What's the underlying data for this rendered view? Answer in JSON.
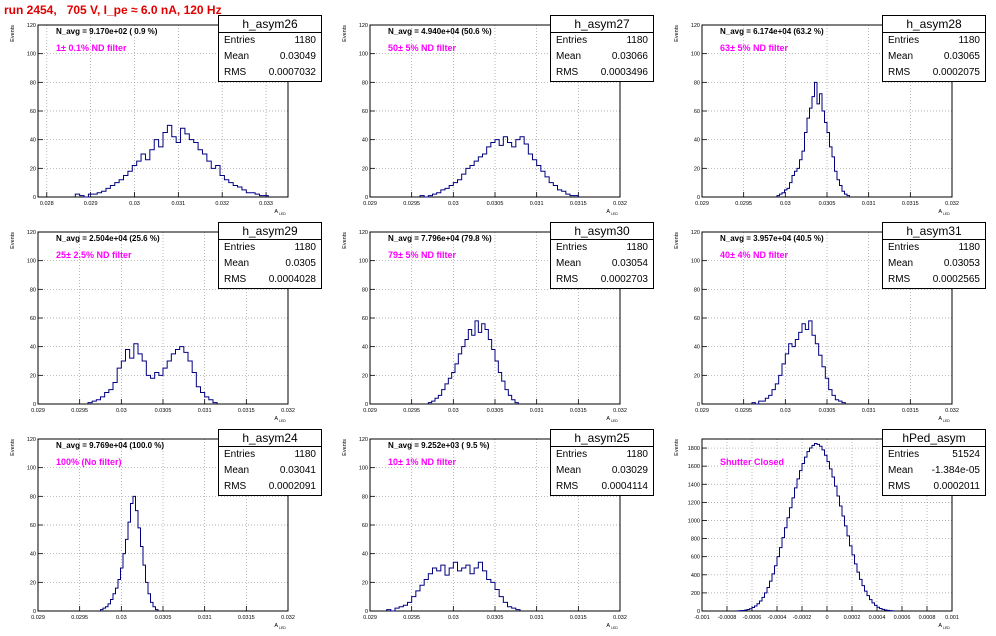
{
  "title": "run 2454,   705 V, I_pe ≈ 6.0 nA, 120 Hz",
  "common": {
    "ylabel": "Events",
    "xlabel": "A",
    "xlabel_sub": "LED",
    "stat_entries_label": "Entries",
    "stat_mean_label": "Mean",
    "stat_rms_label": "RMS",
    "line_color": "#000080"
  },
  "chart_data": [
    {
      "type": "bar",
      "name": "h_asym26",
      "navg": "N_avg = 9.170e+02 ( 0.9 %)",
      "filter": "1± 0.1% ND filter",
      "entries": "1180",
      "mean": "0.03049",
      "rms": "0.0007032",
      "xlim": [
        0.0278,
        0.0335
      ],
      "ylim": [
        0,
        120
      ],
      "xticks": [
        0.028,
        0.029,
        0.03,
        0.031,
        0.032,
        0.033
      ],
      "xticklabels": [
        "0.028",
        "0.029",
        "0.03",
        "0.031",
        "0.032",
        "0.033"
      ],
      "yticks": [
        0,
        20,
        40,
        60,
        80,
        100,
        120
      ],
      "bins": {
        "x0": 0.02865,
        "dx": 0.0001,
        "values": [
          2,
          1,
          0,
          2,
          2,
          3,
          4,
          6,
          8,
          10,
          12,
          15,
          18,
          22,
          25,
          30,
          26,
          33,
          40,
          35,
          45,
          50,
          42,
          38,
          48,
          44,
          40,
          38,
          33,
          30,
          25,
          20,
          22,
          15,
          12,
          10,
          8,
          7,
          5,
          3,
          3,
          2,
          1,
          1
        ]
      }
    },
    {
      "type": "bar",
      "name": "h_asym27",
      "navg": "N_avg = 4.940e+04 (50.6 %)",
      "filter": "50± 5% ND filter",
      "entries": "1180",
      "mean": "0.03066",
      "rms": "0.0003496",
      "xlim": [
        0.029,
        0.032
      ],
      "ylim": [
        0,
        120
      ],
      "xticks": [
        0.029,
        0.0295,
        0.03,
        0.0305,
        0.031,
        0.0315,
        0.032
      ],
      "xticklabels": [
        "0.029",
        "0.0295",
        "0.03",
        "0.0305",
        "0.031",
        "0.0315",
        "0.032"
      ],
      "yticks": [
        0,
        20,
        40,
        60,
        80,
        100,
        120
      ],
      "bins": {
        "x0": 0.0296,
        "dx": 5e-05,
        "values": [
          1,
          0,
          1,
          2,
          3,
          5,
          6,
          8,
          10,
          12,
          16,
          20,
          22,
          25,
          28,
          30,
          35,
          38,
          40,
          36,
          42,
          38,
          35,
          40,
          42,
          37,
          30,
          26,
          22,
          18,
          14,
          10,
          8,
          5,
          4,
          2,
          1,
          1
        ]
      }
    },
    {
      "type": "bar",
      "name": "h_asym28",
      "navg": "N_avg = 6.174e+04 (63.2 %)",
      "filter": "63± 5% ND filter",
      "entries": "1180",
      "mean": "0.03065",
      "rms": "0.0002075",
      "xlim": [
        0.029,
        0.032
      ],
      "ylim": [
        0,
        120
      ],
      "xticks": [
        0.029,
        0.0295,
        0.03,
        0.0305,
        0.031,
        0.0315,
        0.032
      ],
      "xticklabels": [
        "0.029",
        "0.0295",
        "0.03",
        "0.0305",
        "0.031",
        "0.0315",
        "0.032"
      ],
      "yticks": [
        0,
        20,
        40,
        60,
        80,
        100,
        120
      ],
      "bins": {
        "x0": 0.0299,
        "dx": 3e-05,
        "values": [
          1,
          2,
          3,
          5,
          6,
          10,
          15,
          18,
          20,
          26,
          32,
          45,
          55,
          62,
          70,
          80,
          65,
          72,
          60,
          52,
          45,
          35,
          28,
          18,
          12,
          8,
          4,
          2,
          1
        ]
      }
    },
    {
      "type": "bar",
      "name": "h_asym29",
      "navg": "N_avg = 2.504e+04 (25.6 %)",
      "filter": "25± 2.5% ND filter",
      "entries": "1180",
      "mean": "0.0305",
      "rms": "0.0004028",
      "xlim": [
        0.029,
        0.032
      ],
      "ylim": [
        0,
        120
      ],
      "xticks": [
        0.029,
        0.0295,
        0.03,
        0.0305,
        0.031,
        0.0315,
        0.032
      ],
      "xticklabels": [
        "0.029",
        "0.0295",
        "0.03",
        "0.0305",
        "0.031",
        "0.0315",
        "0.032"
      ],
      "yticks": [
        0,
        20,
        40,
        60,
        80,
        100,
        120
      ],
      "bins": {
        "x0": 0.0296,
        "dx": 5e-05,
        "values": [
          1,
          2,
          3,
          5,
          8,
          10,
          15,
          25,
          30,
          38,
          32,
          42,
          35,
          30,
          20,
          18,
          22,
          20,
          25,
          30,
          35,
          38,
          40,
          36,
          30,
          22,
          12,
          8,
          5,
          3,
          1
        ]
      }
    },
    {
      "type": "bar",
      "name": "h_asym30",
      "navg": "N_avg = 7.796e+04 (79.8 %)",
      "filter": "79± 5% ND filter",
      "entries": "1180",
      "mean": "0.03054",
      "rms": "0.0002703",
      "xlim": [
        0.029,
        0.032
      ],
      "ylim": [
        0,
        120
      ],
      "xticks": [
        0.029,
        0.0295,
        0.03,
        0.0305,
        0.031,
        0.0315,
        0.032
      ],
      "xticklabels": [
        "0.029",
        "0.0295",
        "0.03",
        "0.0305",
        "0.031",
        "0.0315",
        "0.032"
      ],
      "yticks": [
        0,
        20,
        40,
        60,
        80,
        100,
        120
      ],
      "bins": {
        "x0": 0.0297,
        "dx": 4e-05,
        "values": [
          1,
          2,
          4,
          6,
          10,
          14,
          18,
          22,
          28,
          35,
          40,
          45,
          52,
          48,
          58,
          50,
          56,
          52,
          45,
          38,
          30,
          22,
          16,
          10,
          6,
          3,
          1
        ]
      }
    },
    {
      "type": "bar",
      "name": "h_asym31",
      "navg": "N_avg = 3.957e+04 (40.5 %)",
      "filter": "40± 4% ND filter",
      "entries": "1180",
      "mean": "0.03053",
      "rms": "0.0002565",
      "xlim": [
        0.029,
        0.032
      ],
      "ylim": [
        0,
        120
      ],
      "xticks": [
        0.029,
        0.0295,
        0.03,
        0.0305,
        0.031,
        0.0315,
        0.032
      ],
      "xticklabels": [
        "0.029",
        "0.0295",
        "0.03",
        "0.0305",
        "0.031",
        "0.0315",
        "0.032"
      ],
      "yticks": [
        0,
        20,
        40,
        60,
        80,
        100,
        120
      ],
      "bins": {
        "x0": 0.0296,
        "dx": 4e-05,
        "values": [
          1,
          0,
          2,
          2,
          4,
          6,
          10,
          14,
          20,
          28,
          35,
          42,
          40,
          45,
          50,
          56,
          52,
          58,
          48,
          42,
          34,
          26,
          18,
          10,
          6,
          3,
          2,
          1
        ]
      }
    },
    {
      "type": "bar",
      "name": "h_asym24",
      "navg": "N_avg = 9.769e+04 (100.0 %)",
      "filter": "100% (No filter)",
      "entries": "1180",
      "mean": "0.03041",
      "rms": "0.0002091",
      "xlim": [
        0.029,
        0.032
      ],
      "ylim": [
        0,
        120
      ],
      "xticks": [
        0.029,
        0.0295,
        0.03,
        0.0305,
        0.031,
        0.0315,
        0.032
      ],
      "xticklabels": [
        "0.029",
        "0.0295",
        "0.03",
        "0.0305",
        "0.031",
        "0.0315",
        "0.032"
      ],
      "yticks": [
        0,
        20,
        40,
        60,
        80,
        100,
        120
      ],
      "bins": {
        "x0": 0.02975,
        "dx": 3e-05,
        "values": [
          1,
          2,
          3,
          5,
          8,
          12,
          16,
          22,
          30,
          40,
          50,
          62,
          75,
          80,
          70,
          58,
          45,
          32,
          20,
          12,
          6,
          3,
          1
        ]
      }
    },
    {
      "type": "bar",
      "name": "h_asym25",
      "navg": "N_avg = 9.252e+03 ( 9.5 %)",
      "filter": "10± 1% ND filter",
      "entries": "1180",
      "mean": "0.03029",
      "rms": "0.0004114",
      "xlim": [
        0.029,
        0.032
      ],
      "ylim": [
        0,
        120
      ],
      "xticks": [
        0.029,
        0.0295,
        0.03,
        0.0305,
        0.031,
        0.0315,
        0.032
      ],
      "xticklabels": [
        "0.029",
        "0.0295",
        "0.03",
        "0.0305",
        "0.031",
        "0.0315",
        "0.032"
      ],
      "yticks": [
        0,
        20,
        40,
        60,
        80,
        100,
        120
      ],
      "bins": {
        "x0": 0.0292,
        "dx": 5e-05,
        "values": [
          1,
          0,
          2,
          3,
          4,
          6,
          10,
          14,
          18,
          22,
          26,
          30,
          28,
          32,
          25,
          30,
          34,
          28,
          30,
          32,
          26,
          30,
          34,
          28,
          22,
          20,
          15,
          10,
          6,
          3,
          2,
          1
        ]
      }
    },
    {
      "type": "bar",
      "name": "hPed_asym",
      "navg": "",
      "filter": "Shutter Closed",
      "entries": "51524",
      "mean": "-1.384e-05",
      "rms": "0.0002011",
      "xlim": [
        -0.001,
        0.001
      ],
      "ylim": [
        0,
        1900
      ],
      "xticks": [
        -0.001,
        -0.0008,
        -0.0006,
        -0.0004,
        -0.0002,
        0,
        0.0002,
        0.0004,
        0.0006,
        0.0008,
        0.001
      ],
      "xticklabels": [
        "-0.001",
        "-0.0008",
        "-0.0006",
        "-0.0004",
        "-0.0002",
        "0",
        "0.0002",
        "0.0004",
        "0.0006",
        "0.0008",
        "0.001"
      ],
      "yticks": [
        0,
        200,
        400,
        600,
        800,
        1000,
        1200,
        1400,
        1600,
        1800
      ],
      "bins": {
        "x0": -0.00072,
        "dx": 2e-05,
        "values": [
          2,
          4,
          6,
          10,
          16,
          25,
          38,
          55,
          80,
          110,
          150,
          200,
          260,
          330,
          410,
          500,
          600,
          700,
          810,
          920,
          1030,
          1140,
          1250,
          1360,
          1460,
          1550,
          1630,
          1700,
          1760,
          1800,
          1830,
          1850,
          1840,
          1820,
          1780,
          1720,
          1650,
          1570,
          1480,
          1380,
          1270,
          1160,
          1050,
          940,
          830,
          720,
          620,
          520,
          430,
          350,
          280,
          220,
          170,
          125,
          90,
          62,
          42,
          28,
          18,
          11,
          7,
          4,
          2
        ]
      }
    }
  ]
}
